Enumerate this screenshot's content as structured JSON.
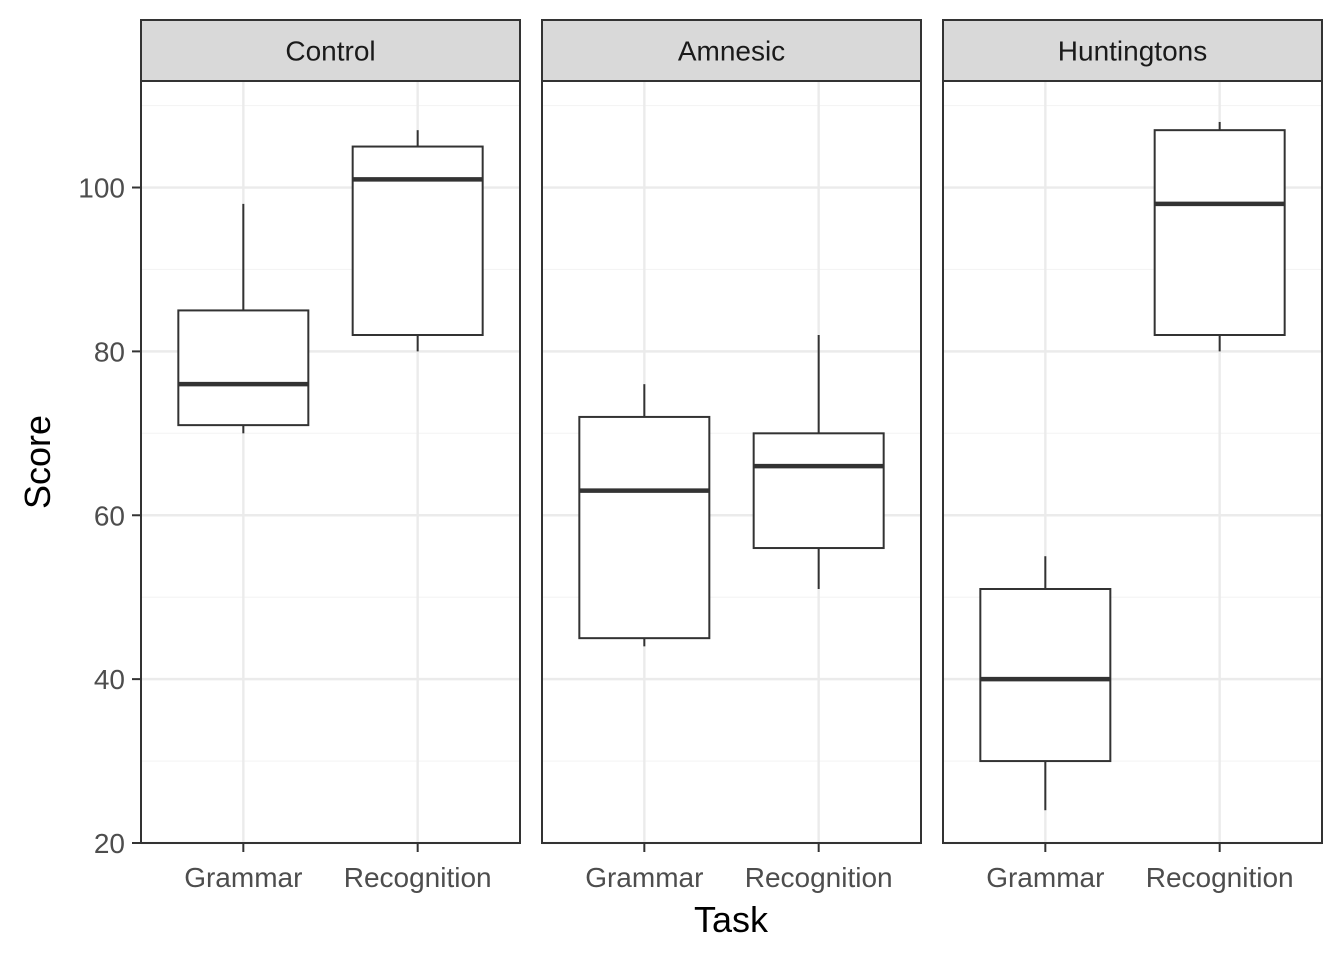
{
  "chart_data": {
    "type": "boxplot",
    "facet_by": "group",
    "panels": [
      {
        "label": "Control",
        "boxes": [
          {
            "category": "Grammar",
            "min": 70,
            "q1": 71,
            "median": 76,
            "q3": 85,
            "max": 98
          },
          {
            "category": "Recognition",
            "min": 80,
            "q1": 82,
            "median": 101,
            "q3": 105,
            "max": 107
          }
        ]
      },
      {
        "label": "Amnesic",
        "boxes": [
          {
            "category": "Grammar",
            "min": 44,
            "q1": 45,
            "median": 63,
            "q3": 72,
            "max": 76
          },
          {
            "category": "Recognition",
            "min": 51,
            "q1": 56,
            "median": 66,
            "q3": 70,
            "max": 82
          }
        ]
      },
      {
        "label": "Huntingtons",
        "boxes": [
          {
            "category": "Grammar",
            "min": 24,
            "q1": 30,
            "median": 40,
            "q3": 51,
            "max": 55
          },
          {
            "category": "Recognition",
            "min": 80,
            "q1": 82,
            "median": 98,
            "q3": 107,
            "max": 108
          }
        ]
      }
    ],
    "categories": [
      "Grammar",
      "Recognition"
    ],
    "xlabel": "Task",
    "ylabel": "Score",
    "yticks": [
      20,
      40,
      60,
      80,
      100
    ],
    "ylim": [
      20,
      113
    ],
    "grid": true,
    "colors": {
      "strip_fill": "#d9d9d9",
      "panel_border": "#333333",
      "grid_major": "#ebebeb",
      "grid_minor": "#f4f4f4",
      "box_line": "#333333",
      "text": "#4d4d4d",
      "title": "#000000"
    }
  }
}
